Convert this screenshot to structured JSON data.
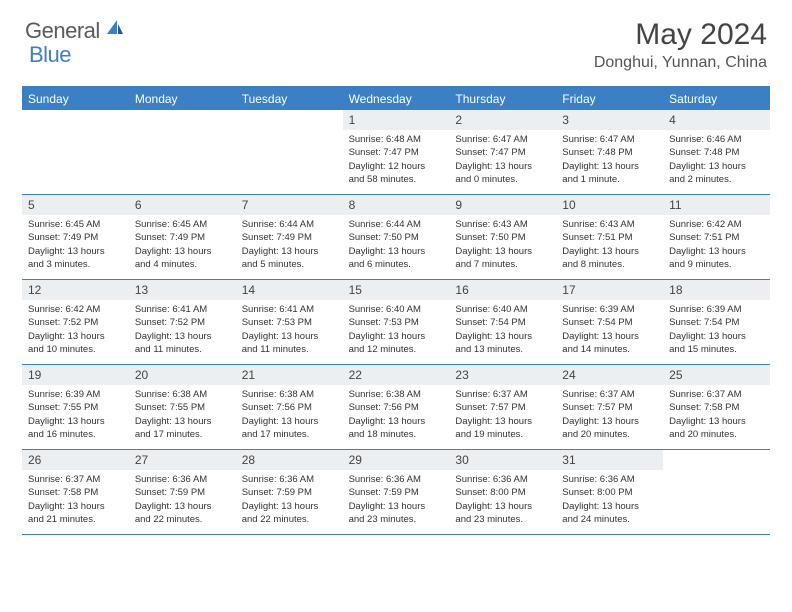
{
  "logo": {
    "text_general": "General",
    "text_blue": "Blue"
  },
  "title": "May 2024",
  "location": "Donghui, Yunnan, China",
  "colors": {
    "header_bg": "#3b7fc4",
    "header_text": "#ffffff",
    "daynum_bg": "#eceff1",
    "border": "#3b7fc4",
    "body_text": "#333333",
    "title_text": "#444444"
  },
  "weekdays": [
    "Sunday",
    "Monday",
    "Tuesday",
    "Wednesday",
    "Thursday",
    "Friday",
    "Saturday"
  ],
  "weeks": [
    [
      {
        "day": "",
        "sunrise": "",
        "sunset": "",
        "daylight": ""
      },
      {
        "day": "",
        "sunrise": "",
        "sunset": "",
        "daylight": ""
      },
      {
        "day": "",
        "sunrise": "",
        "sunset": "",
        "daylight": ""
      },
      {
        "day": "1",
        "sunrise": "Sunrise: 6:48 AM",
        "sunset": "Sunset: 7:47 PM",
        "daylight": "Daylight: 12 hours and 58 minutes."
      },
      {
        "day": "2",
        "sunrise": "Sunrise: 6:47 AM",
        "sunset": "Sunset: 7:47 PM",
        "daylight": "Daylight: 13 hours and 0 minutes."
      },
      {
        "day": "3",
        "sunrise": "Sunrise: 6:47 AM",
        "sunset": "Sunset: 7:48 PM",
        "daylight": "Daylight: 13 hours and 1 minute."
      },
      {
        "day": "4",
        "sunrise": "Sunrise: 6:46 AM",
        "sunset": "Sunset: 7:48 PM",
        "daylight": "Daylight: 13 hours and 2 minutes."
      }
    ],
    [
      {
        "day": "5",
        "sunrise": "Sunrise: 6:45 AM",
        "sunset": "Sunset: 7:49 PM",
        "daylight": "Daylight: 13 hours and 3 minutes."
      },
      {
        "day": "6",
        "sunrise": "Sunrise: 6:45 AM",
        "sunset": "Sunset: 7:49 PM",
        "daylight": "Daylight: 13 hours and 4 minutes."
      },
      {
        "day": "7",
        "sunrise": "Sunrise: 6:44 AM",
        "sunset": "Sunset: 7:49 PM",
        "daylight": "Daylight: 13 hours and 5 minutes."
      },
      {
        "day": "8",
        "sunrise": "Sunrise: 6:44 AM",
        "sunset": "Sunset: 7:50 PM",
        "daylight": "Daylight: 13 hours and 6 minutes."
      },
      {
        "day": "9",
        "sunrise": "Sunrise: 6:43 AM",
        "sunset": "Sunset: 7:50 PM",
        "daylight": "Daylight: 13 hours and 7 minutes."
      },
      {
        "day": "10",
        "sunrise": "Sunrise: 6:43 AM",
        "sunset": "Sunset: 7:51 PM",
        "daylight": "Daylight: 13 hours and 8 minutes."
      },
      {
        "day": "11",
        "sunrise": "Sunrise: 6:42 AM",
        "sunset": "Sunset: 7:51 PM",
        "daylight": "Daylight: 13 hours and 9 minutes."
      }
    ],
    [
      {
        "day": "12",
        "sunrise": "Sunrise: 6:42 AM",
        "sunset": "Sunset: 7:52 PM",
        "daylight": "Daylight: 13 hours and 10 minutes."
      },
      {
        "day": "13",
        "sunrise": "Sunrise: 6:41 AM",
        "sunset": "Sunset: 7:52 PM",
        "daylight": "Daylight: 13 hours and 11 minutes."
      },
      {
        "day": "14",
        "sunrise": "Sunrise: 6:41 AM",
        "sunset": "Sunset: 7:53 PM",
        "daylight": "Daylight: 13 hours and 11 minutes."
      },
      {
        "day": "15",
        "sunrise": "Sunrise: 6:40 AM",
        "sunset": "Sunset: 7:53 PM",
        "daylight": "Daylight: 13 hours and 12 minutes."
      },
      {
        "day": "16",
        "sunrise": "Sunrise: 6:40 AM",
        "sunset": "Sunset: 7:54 PM",
        "daylight": "Daylight: 13 hours and 13 minutes."
      },
      {
        "day": "17",
        "sunrise": "Sunrise: 6:39 AM",
        "sunset": "Sunset: 7:54 PM",
        "daylight": "Daylight: 13 hours and 14 minutes."
      },
      {
        "day": "18",
        "sunrise": "Sunrise: 6:39 AM",
        "sunset": "Sunset: 7:54 PM",
        "daylight": "Daylight: 13 hours and 15 minutes."
      }
    ],
    [
      {
        "day": "19",
        "sunrise": "Sunrise: 6:39 AM",
        "sunset": "Sunset: 7:55 PM",
        "daylight": "Daylight: 13 hours and 16 minutes."
      },
      {
        "day": "20",
        "sunrise": "Sunrise: 6:38 AM",
        "sunset": "Sunset: 7:55 PM",
        "daylight": "Daylight: 13 hours and 17 minutes."
      },
      {
        "day": "21",
        "sunrise": "Sunrise: 6:38 AM",
        "sunset": "Sunset: 7:56 PM",
        "daylight": "Daylight: 13 hours and 17 minutes."
      },
      {
        "day": "22",
        "sunrise": "Sunrise: 6:38 AM",
        "sunset": "Sunset: 7:56 PM",
        "daylight": "Daylight: 13 hours and 18 minutes."
      },
      {
        "day": "23",
        "sunrise": "Sunrise: 6:37 AM",
        "sunset": "Sunset: 7:57 PM",
        "daylight": "Daylight: 13 hours and 19 minutes."
      },
      {
        "day": "24",
        "sunrise": "Sunrise: 6:37 AM",
        "sunset": "Sunset: 7:57 PM",
        "daylight": "Daylight: 13 hours and 20 minutes."
      },
      {
        "day": "25",
        "sunrise": "Sunrise: 6:37 AM",
        "sunset": "Sunset: 7:58 PM",
        "daylight": "Daylight: 13 hours and 20 minutes."
      }
    ],
    [
      {
        "day": "26",
        "sunrise": "Sunrise: 6:37 AM",
        "sunset": "Sunset: 7:58 PM",
        "daylight": "Daylight: 13 hours and 21 minutes."
      },
      {
        "day": "27",
        "sunrise": "Sunrise: 6:36 AM",
        "sunset": "Sunset: 7:59 PM",
        "daylight": "Daylight: 13 hours and 22 minutes."
      },
      {
        "day": "28",
        "sunrise": "Sunrise: 6:36 AM",
        "sunset": "Sunset: 7:59 PM",
        "daylight": "Daylight: 13 hours and 22 minutes."
      },
      {
        "day": "29",
        "sunrise": "Sunrise: 6:36 AM",
        "sunset": "Sunset: 7:59 PM",
        "daylight": "Daylight: 13 hours and 23 minutes."
      },
      {
        "day": "30",
        "sunrise": "Sunrise: 6:36 AM",
        "sunset": "Sunset: 8:00 PM",
        "daylight": "Daylight: 13 hours and 23 minutes."
      },
      {
        "day": "31",
        "sunrise": "Sunrise: 6:36 AM",
        "sunset": "Sunset: 8:00 PM",
        "daylight": "Daylight: 13 hours and 24 minutes."
      },
      {
        "day": "",
        "sunrise": "",
        "sunset": "",
        "daylight": ""
      }
    ]
  ]
}
